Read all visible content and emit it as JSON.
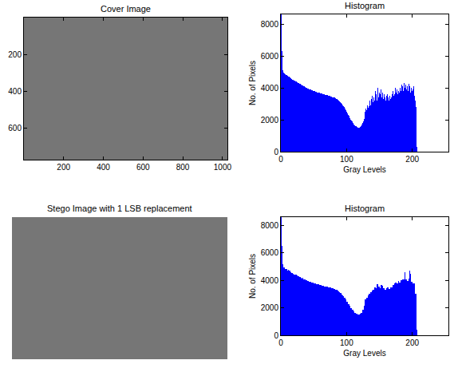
{
  "chart_data": [
    {
      "type": "image",
      "title": "Cover Image",
      "xlim": [
        0.5,
        1024.5
      ],
      "ylim": [
        768.5,
        0.5
      ],
      "xticks": [
        200,
        400,
        600,
        800,
        1000
      ],
      "yticks": [
        200,
        400,
        600
      ]
    },
    {
      "type": "histogram",
      "title": "Histogram",
      "x_label": "Gray Levels",
      "y_label": "No. of Pixels",
      "color": "#0000ff",
      "xlim": [
        0,
        255
      ],
      "ylim": [
        0,
        8600
      ],
      "xticks": [
        0,
        100,
        200
      ],
      "yticks": [
        0,
        2000,
        4000,
        6000,
        8000
      ],
      "bins": [
        0,
        1,
        2,
        3,
        4,
        5,
        6,
        7,
        8,
        9,
        10,
        11,
        12,
        13,
        14,
        15,
        16,
        17,
        18,
        19,
        20,
        21,
        22,
        23,
        24,
        25,
        26,
        27,
        28,
        29,
        30,
        31,
        32,
        33,
        34,
        35,
        36,
        37,
        38,
        39,
        40,
        41,
        42,
        43,
        44,
        45,
        46,
        47,
        48,
        49,
        50,
        51,
        52,
        53,
        54,
        55,
        56,
        57,
        58,
        59,
        60,
        61,
        62,
        63,
        64,
        65,
        66,
        67,
        68,
        69,
        70,
        71,
        72,
        73,
        74,
        75,
        76,
        77,
        78,
        79,
        80,
        81,
        82,
        83,
        84,
        85,
        86,
        87,
        88,
        89,
        90,
        91,
        92,
        93,
        94,
        95,
        96,
        97,
        98,
        99,
        100,
        101,
        102,
        103,
        104,
        105,
        106,
        107,
        108,
        109,
        110,
        111,
        112,
        113,
        114,
        115,
        116,
        117,
        118,
        119,
        120,
        121,
        122,
        123,
        124,
        125,
        126,
        127,
        128,
        129,
        130,
        131,
        132,
        133,
        134,
        135,
        136,
        137,
        138,
        139,
        140,
        141,
        142,
        143,
        144,
        145,
        146,
        147,
        148,
        149,
        150,
        151,
        152,
        153,
        154,
        155,
        156,
        157,
        158,
        159,
        160,
        161,
        162,
        163,
        164,
        165,
        166,
        167,
        168,
        169,
        170,
        171,
        172,
        173,
        174,
        175,
        176,
        177,
        178,
        179,
        180,
        181,
        182,
        183,
        184,
        185,
        186,
        187,
        188,
        189,
        190,
        191,
        192,
        193,
        194,
        195,
        196,
        197,
        198,
        199,
        200,
        201,
        202,
        203,
        204,
        205,
        206,
        207,
        208
      ],
      "counts": [
        8600,
        6300,
        5500,
        5100,
        4950,
        4900,
        4850,
        4800,
        4850,
        4780,
        4750,
        4700,
        4720,
        4650,
        4600,
        4620,
        4550,
        4500,
        4520,
        4480,
        4450,
        4430,
        4400,
        4380,
        4350,
        4360,
        4300,
        4280,
        4250,
        4260,
        4200,
        4180,
        4150,
        4160,
        4100,
        4080,
        4050,
        4060,
        4000,
        3980,
        3950,
        3960,
        3920,
        3900,
        3880,
        3900,
        3850,
        3830,
        3840,
        3800,
        3780,
        3790,
        3760,
        3740,
        3750,
        3720,
        3700,
        3710,
        3680,
        3670,
        3650,
        3660,
        3630,
        3620,
        3600,
        3610,
        3580,
        3560,
        3570,
        3540,
        3520,
        3530,
        3500,
        3480,
        3490,
        3460,
        3440,
        3450,
        3420,
        3400,
        3380,
        3390,
        3350,
        3330,
        3300,
        3280,
        3250,
        3220,
        3180,
        3150,
        3100,
        3060,
        3000,
        2950,
        2900,
        2850,
        2780,
        2700,
        2620,
        2550,
        2480,
        2400,
        2320,
        2250,
        2180,
        2100,
        2020,
        1950,
        1880,
        1820,
        1760,
        1700,
        1650,
        1600,
        1580,
        1550,
        1530,
        1520,
        1500,
        1510,
        1530,
        1560,
        1600,
        1680,
        1780,
        1900,
        2050,
        2250,
        2500,
        2700,
        2600,
        2900,
        2750,
        3000,
        2850,
        3200,
        2900,
        3300,
        3000,
        3500,
        3100,
        3400,
        3200,
        3800,
        3300,
        3600,
        3200,
        4000,
        3400,
        3700,
        3300,
        3600,
        3900,
        3400,
        3700,
        3500,
        3300,
        3600,
        3400,
        3200,
        3500,
        3300,
        3600,
        3400,
        3200,
        3500,
        3300,
        3700,
        3400,
        3600,
        3800,
        3500,
        3900,
        3600,
        4000,
        3700,
        3900,
        3600,
        4100,
        3800,
        3700,
        4000,
        3800,
        4200,
        3900,
        4100,
        3800,
        4300,
        4000,
        3900,
        4200,
        3900,
        4100,
        3800,
        4250,
        3950,
        4100,
        3700,
        4000,
        3800,
        3900,
        3600,
        4100,
        3500,
        3200,
        2800,
        1500,
        300
      ]
    },
    {
      "type": "image",
      "title": "Stego Image with 1 LSB replacement",
      "tick_labels": false
    },
    {
      "type": "histogram",
      "title": "Histogram",
      "x_label": "Gray Levels",
      "y_label": "No. of Pixels",
      "color": "#0000ff",
      "xlim": [
        0,
        255
      ],
      "ylim": [
        0,
        8600
      ],
      "xticks": [
        0,
        100,
        200
      ],
      "yticks": [
        0,
        2000,
        4000,
        6000,
        8000
      ],
      "bins": [
        0,
        1,
        2,
        3,
        4,
        5,
        6,
        7,
        8,
        9,
        10,
        11,
        12,
        13,
        14,
        15,
        16,
        17,
        18,
        19,
        20,
        21,
        22,
        23,
        24,
        25,
        26,
        27,
        28,
        29,
        30,
        31,
        32,
        33,
        34,
        35,
        36,
        37,
        38,
        39,
        40,
        41,
        42,
        43,
        44,
        45,
        46,
        47,
        48,
        49,
        50,
        51,
        52,
        53,
        54,
        55,
        56,
        57,
        58,
        59,
        60,
        61,
        62,
        63,
        64,
        65,
        66,
        67,
        68,
        69,
        70,
        71,
        72,
        73,
        74,
        75,
        76,
        77,
        78,
        79,
        80,
        81,
        82,
        83,
        84,
        85,
        86,
        87,
        88,
        89,
        90,
        91,
        92,
        93,
        94,
        95,
        96,
        97,
        98,
        99,
        100,
        101,
        102,
        103,
        104,
        105,
        106,
        107,
        108,
        109,
        110,
        111,
        112,
        113,
        114,
        115,
        116,
        117,
        118,
        119,
        120,
        121,
        122,
        123,
        124,
        125,
        126,
        127,
        128,
        129,
        130,
        131,
        132,
        133,
        134,
        135,
        136,
        137,
        138,
        139,
        140,
        141,
        142,
        143,
        144,
        145,
        146,
        147,
        148,
        149,
        150,
        151,
        152,
        153,
        154,
        155,
        156,
        157,
        158,
        159,
        160,
        161,
        162,
        163,
        164,
        165,
        166,
        167,
        168,
        169,
        170,
        171,
        172,
        173,
        174,
        175,
        176,
        177,
        178,
        179,
        180,
        181,
        182,
        183,
        184,
        185,
        186,
        187,
        188,
        189,
        190,
        191,
        192,
        193,
        194,
        195,
        196,
        197,
        198,
        199,
        200,
        201,
        202,
        203,
        204,
        205,
        206,
        207,
        208
      ],
      "counts": [
        8600,
        6500,
        5400,
        5200,
        4950,
        4950,
        4800,
        4850,
        4800,
        4800,
        4700,
        4750,
        4680,
        4680,
        4600,
        4610,
        4520,
        4530,
        4500,
        4490,
        4440,
        4440,
        4390,
        4390,
        4360,
        4350,
        4290,
        4290,
        4260,
        4250,
        4190,
        4190,
        4150,
        4160,
        4090,
        4090,
        4060,
        4050,
        3990,
        3990,
        3950,
        3960,
        3910,
        3910,
        3890,
        3890,
        3840,
        3840,
        3820,
        3820,
        3790,
        3780,
        3750,
        3750,
        3730,
        3740,
        3710,
        3700,
        3680,
        3670,
        3650,
        3660,
        3630,
        3620,
        3600,
        3610,
        3570,
        3570,
        3560,
        3550,
        3530,
        3520,
        3490,
        3490,
        3480,
        3470,
        3450,
        3440,
        3410,
        3410,
        3370,
        3380,
        3340,
        3340,
        3290,
        3290,
        3240,
        3230,
        3170,
        3160,
        3080,
        3080,
        2980,
        2970,
        2880,
        2870,
        2740,
        2740,
        2590,
        2580,
        2440,
        2440,
        2290,
        2280,
        2140,
        2140,
        1990,
        1980,
        1850,
        1850,
        1730,
        1730,
        1630,
        1620,
        1570,
        1560,
        1530,
        1520,
        1510,
        1500,
        1550,
        1540,
        1640,
        1640,
        1840,
        1840,
        2150,
        2150,
        2600,
        2600,
        2750,
        2750,
        2880,
        2870,
        3020,
        3030,
        3150,
        3150,
        3250,
        3250,
        3300,
        3300,
        3500,
        3500,
        3450,
        3450,
        3700,
        3700,
        3550,
        3550,
        3450,
        3450,
        3650,
        3650,
        3600,
        3600,
        3450,
        3450,
        3300,
        3300,
        3400,
        3400,
        3500,
        3500,
        3350,
        3350,
        3500,
        3500,
        3500,
        3500,
        3650,
        3650,
        3750,
        3750,
        3850,
        3850,
        3750,
        3750,
        3950,
        3950,
        3850,
        3850,
        4000,
        4000,
        4050,
        4050,
        4050,
        4050,
        4600,
        4400,
        4050,
        4050,
        3950,
        3950,
        4100,
        4100,
        4700,
        4500,
        3900,
        3900,
        3750,
        3750,
        3800,
        3800,
        3000,
        3000,
        1400,
        400
      ]
    }
  ]
}
